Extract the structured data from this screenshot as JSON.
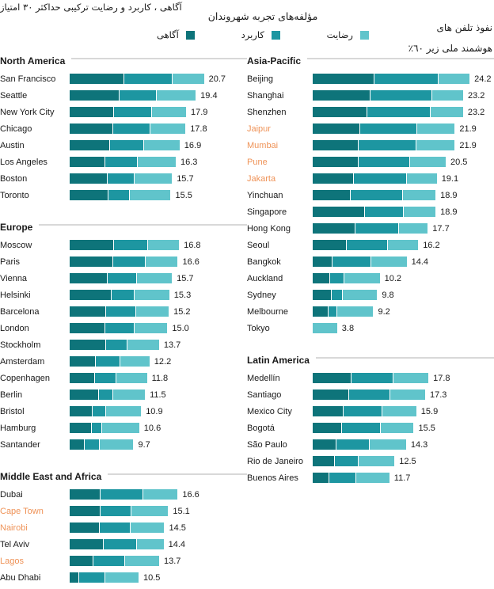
{
  "header": {
    "left_note": "آگاهی ، کاربرد و رضایت ترکیبی حداکثر ۳۰ امتیاز",
    "title": "مؤلفه‌های تجربه شهروندان",
    "right_note_line1": "نفوذ تلفن های",
    "right_note_line2": "هوشمند ملی زیر ٦٠٪",
    "legend": {
      "items": [
        {
          "label": "آگاهی",
          "color": "#0e747a"
        },
        {
          "label": "کاربرد",
          "color": "#1d96a1"
        },
        {
          "label": "رضایت",
          "color": "#60c4cb"
        }
      ]
    }
  },
  "chart_data": {
    "type": "bar",
    "orientation": "horizontal",
    "stacked": true,
    "title": "مؤلفه‌های تجربه شهروندان",
    "series_names": [
      "آگاهی",
      "کاربرد",
      "رضایت"
    ],
    "segment_colors": [
      "#0e747a",
      "#1d96a1",
      "#60c4cb"
    ],
    "highlight_color": "#ef9358",
    "text_color": "#1a1a1a",
    "value_scale_max": 30,
    "legend_position": "top-center",
    "sections": [
      {
        "title": "North America",
        "column": "left",
        "rows": [
          {
            "city": "San Francisco",
            "total": 20.7,
            "segments": [
              8.4,
              7.4,
              4.9
            ],
            "highlight": false
          },
          {
            "city": "Seattle",
            "total": 19.4,
            "segments": [
              7.6,
              5.7,
              6.1
            ],
            "highlight": false
          },
          {
            "city": "New York City",
            "total": 17.9,
            "segments": [
              6.8,
              5.8,
              5.3
            ],
            "highlight": false
          },
          {
            "city": "Chicago",
            "total": 17.8,
            "segments": [
              6.7,
              5.6,
              5.5
            ],
            "highlight": false
          },
          {
            "city": "Austin",
            "total": 16.9,
            "segments": [
              6.2,
              5.2,
              5.5
            ],
            "highlight": false
          },
          {
            "city": "Los Angeles",
            "total": 16.3,
            "segments": [
              5.4,
              5.0,
              5.9
            ],
            "highlight": false
          },
          {
            "city": "Boston",
            "total": 15.7,
            "segments": [
              5.8,
              4.1,
              5.8
            ],
            "highlight": false
          },
          {
            "city": "Toronto",
            "total": 15.5,
            "segments": [
              5.9,
              3.3,
              6.3
            ],
            "highlight": false
          }
        ]
      },
      {
        "title": "Europe",
        "column": "left",
        "rows": [
          {
            "city": "Moscow",
            "total": 16.8,
            "segments": [
              6.8,
              5.2,
              4.8
            ],
            "highlight": false
          },
          {
            "city": "Paris",
            "total": 16.6,
            "segments": [
              6.7,
              4.9,
              5.0
            ],
            "highlight": false
          },
          {
            "city": "Vienna",
            "total": 15.7,
            "segments": [
              5.8,
              4.4,
              5.5
            ],
            "highlight": false
          },
          {
            "city": "Helsinki",
            "total": 15.3,
            "segments": [
              6.4,
              3.5,
              5.4
            ],
            "highlight": false
          },
          {
            "city": "Barcelona",
            "total": 15.2,
            "segments": [
              5.6,
              4.5,
              5.1
            ],
            "highlight": false
          },
          {
            "city": "London",
            "total": 15.0,
            "segments": [
              5.4,
              4.5,
              5.1
            ],
            "highlight": false
          },
          {
            "city": "Stockholm",
            "total": 13.7,
            "segments": [
              5.5,
              3.3,
              4.9
            ],
            "highlight": false
          },
          {
            "city": "Amsterdam",
            "total": 12.2,
            "segments": [
              3.9,
              3.8,
              4.5
            ],
            "highlight": false
          },
          {
            "city": "Copenhagen",
            "total": 11.8,
            "segments": [
              3.8,
              3.2,
              4.8
            ],
            "highlight": false
          },
          {
            "city": "Berlin",
            "total": 11.5,
            "segments": [
              4.5,
              2.1,
              4.9
            ],
            "highlight": false
          },
          {
            "city": "Bristol",
            "total": 10.9,
            "segments": [
              3.4,
              2.0,
              5.5
            ],
            "highlight": false
          },
          {
            "city": "Hamburg",
            "total": 10.6,
            "segments": [
              3.3,
              1.5,
              5.8
            ],
            "highlight": false
          },
          {
            "city": "Santander",
            "total": 9.7,
            "segments": [
              2.2,
              2.2,
              5.3
            ],
            "highlight": false
          }
        ]
      },
      {
        "title": "Middle East and Africa",
        "column": "left",
        "rows": [
          {
            "city": "Dubai",
            "total": 16.6,
            "segments": [
              4.7,
              6.5,
              5.4
            ],
            "highlight": false
          },
          {
            "city": "Cape Town",
            "total": 15.1,
            "segments": [
              4.7,
              4.7,
              5.7
            ],
            "highlight": true
          },
          {
            "city": "Nairobi",
            "total": 14.5,
            "segments": [
              4.6,
              4.6,
              5.3
            ],
            "highlight": true
          },
          {
            "city": "Tel Aviv",
            "total": 14.4,
            "segments": [
              5.2,
              5.1,
              4.1
            ],
            "highlight": false
          },
          {
            "city": "Lagos",
            "total": 13.7,
            "segments": [
              3.6,
              4.8,
              5.3
            ],
            "highlight": true
          },
          {
            "city": "Abu Dhabi",
            "total": 10.5,
            "segments": [
              1.4,
              3.9,
              5.2
            ],
            "highlight": false
          }
        ]
      },
      {
        "title": "Asia-Pacific",
        "column": "right",
        "rows": [
          {
            "city": "Beijing",
            "total": 24.2,
            "segments": [
              9.5,
              9.9,
              4.8
            ],
            "highlight": false
          },
          {
            "city": "Shanghai",
            "total": 23.2,
            "segments": [
              8.9,
              9.5,
              4.8
            ],
            "highlight": false
          },
          {
            "city": "Shenzhen",
            "total": 23.2,
            "segments": [
              8.4,
              9.8,
              5.0
            ],
            "highlight": false
          },
          {
            "city": "Jaipur",
            "total": 21.9,
            "segments": [
              7.3,
              8.7,
              5.9
            ],
            "highlight": true
          },
          {
            "city": "Mumbai",
            "total": 21.9,
            "segments": [
              7.0,
              8.9,
              6.0
            ],
            "highlight": true
          },
          {
            "city": "Pune",
            "total": 20.5,
            "segments": [
              7.0,
              8.0,
              5.5
            ],
            "highlight": true
          },
          {
            "city": "Jakarta",
            "total": 19.1,
            "segments": [
              6.3,
              8.2,
              4.6
            ],
            "highlight": true
          },
          {
            "city": "Yinchuan",
            "total": 18.9,
            "segments": [
              5.8,
              8.0,
              5.1
            ],
            "highlight": false
          },
          {
            "city": "Singapore",
            "total": 18.9,
            "segments": [
              8.0,
              6.0,
              4.9
            ],
            "highlight": false
          },
          {
            "city": "Hong Kong",
            "total": 17.7,
            "segments": [
              6.5,
              6.7,
              4.5
            ],
            "highlight": false
          },
          {
            "city": "Seoul",
            "total": 16.2,
            "segments": [
              5.2,
              6.3,
              4.7
            ],
            "highlight": false
          },
          {
            "city": "Bangkok",
            "total": 14.4,
            "segments": [
              3.0,
              5.9,
              5.5
            ],
            "highlight": false
          },
          {
            "city": "Auckland",
            "total": 10.2,
            "segments": [
              2.6,
              2.1,
              5.5
            ],
            "highlight": false
          },
          {
            "city": "Sydney",
            "total": 9.8,
            "segments": [
              2.8,
              1.7,
              5.3
            ],
            "highlight": false
          },
          {
            "city": "Melbourne",
            "total": 9.2,
            "segments": [
              2.4,
              1.2,
              5.6
            ],
            "highlight": false
          },
          {
            "city": "Tokyo",
            "total": 3.8,
            "segments": [
              0,
              0,
              3.8
            ],
            "highlight": false
          }
        ]
      },
      {
        "title": "Latin America",
        "column": "right",
        "rows": [
          {
            "city": "Medellín",
            "total": 17.8,
            "segments": [
              5.9,
              6.4,
              5.5
            ],
            "highlight": false
          },
          {
            "city": "Santiago",
            "total": 17.3,
            "segments": [
              5.5,
              6.4,
              5.4
            ],
            "highlight": false
          },
          {
            "city": "Mexico City",
            "total": 15.9,
            "segments": [
              4.7,
              5.9,
              5.3
            ],
            "highlight": false
          },
          {
            "city": "Bogotá",
            "total": 15.5,
            "segments": [
              4.5,
              5.9,
              5.1
            ],
            "highlight": false
          },
          {
            "city": "São Paulo",
            "total": 14.3,
            "segments": [
              3.6,
              5.0,
              5.7
            ],
            "highlight": false
          },
          {
            "city": "Rio de Janeiro",
            "total": 12.5,
            "segments": [
              3.3,
              3.6,
              5.6
            ],
            "highlight": false
          },
          {
            "city": "Buenos Aires",
            "total": 11.7,
            "segments": [
              2.5,
              4.1,
              5.1
            ],
            "highlight": false
          }
        ]
      }
    ]
  }
}
